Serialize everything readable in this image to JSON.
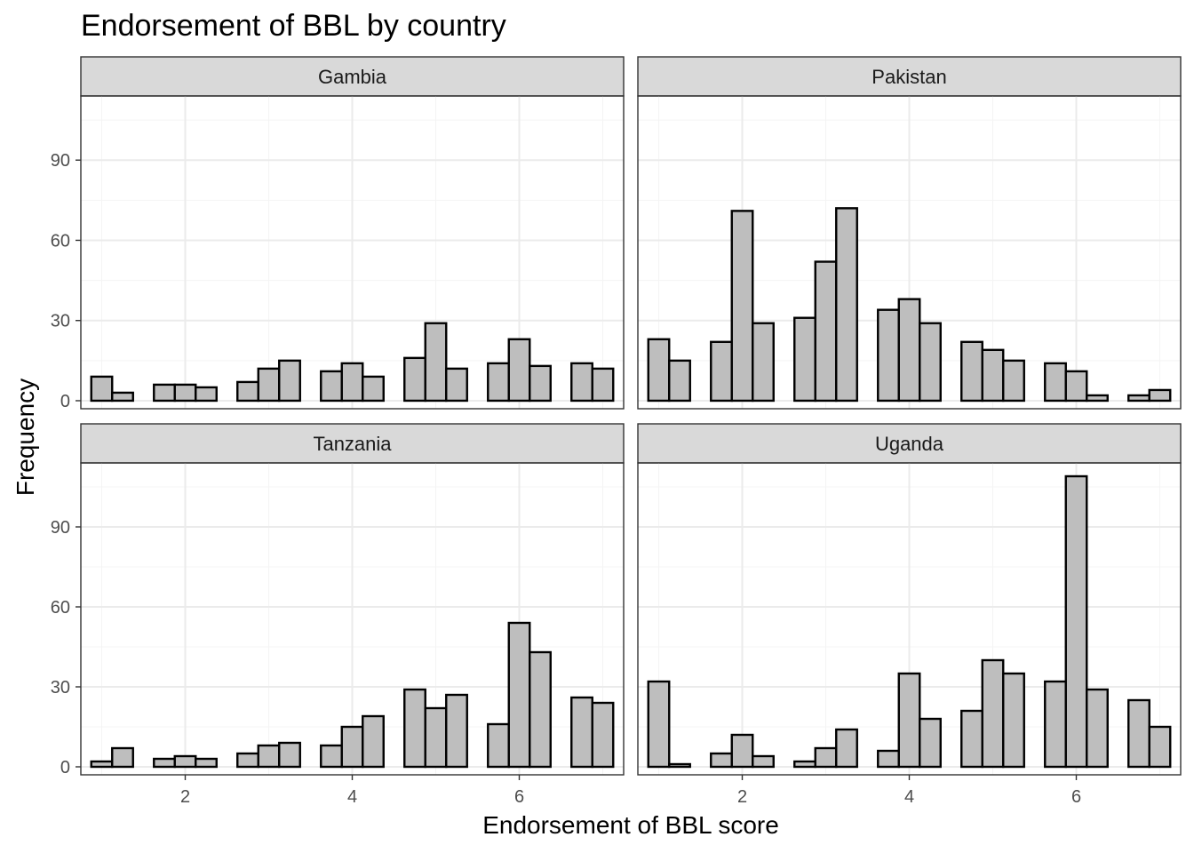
{
  "chart_data": {
    "type": "bar",
    "subtype": "faceted-histogram",
    "title": "Endorsement of BBL by country",
    "xlabel": "Endorsement of BBL score",
    "ylabel": "Frequency",
    "xlim": [
      0.75,
      7.25
    ],
    "ylim": [
      -3,
      114
    ],
    "x_ticks": [
      2,
      4,
      6
    ],
    "y_ticks": [
      0,
      30,
      60,
      90
    ],
    "grid": true,
    "colors": {
      "bar_fill": "#bebebe",
      "bar_outline": "#000000",
      "strip": "#d9d9d9",
      "grid": "#ebebeb"
    },
    "bin_centers": [
      1.0,
      1.25,
      1.5,
      1.75,
      2.0,
      2.25,
      2.5,
      2.75,
      3.0,
      3.25,
      3.5,
      3.75,
      4.0,
      4.25,
      4.5,
      4.75,
      5.0,
      5.25,
      5.5,
      5.75,
      6.0,
      6.25,
      6.5,
      6.75,
      7.0
    ],
    "bin_width": 0.25,
    "panels": [
      {
        "name": "Gambia",
        "values": [
          9,
          3,
          0,
          6,
          6,
          5,
          0,
          7,
          12,
          15,
          0,
          11,
          14,
          9,
          0,
          16,
          29,
          12,
          0,
          14,
          23,
          13,
          0,
          14,
          12
        ]
      },
      {
        "name": "Pakistan",
        "values": [
          23,
          15,
          0,
          22,
          71,
          29,
          0,
          31,
          52,
          72,
          0,
          34,
          38,
          29,
          0,
          22,
          19,
          15,
          0,
          14,
          11,
          2,
          0,
          2,
          4
        ]
      },
      {
        "name": "Tanzania",
        "values": [
          2,
          7,
          0,
          3,
          4,
          3,
          0,
          5,
          8,
          9,
          0,
          8,
          15,
          19,
          0,
          29,
          22,
          27,
          0,
          16,
          54,
          43,
          0,
          26,
          24
        ]
      },
      {
        "name": "Uganda",
        "values": [
          32,
          1,
          0,
          5,
          12,
          4,
          0,
          2,
          7,
          14,
          0,
          6,
          35,
          18,
          0,
          21,
          40,
          35,
          0,
          32,
          109,
          29,
          0,
          25,
          15
        ]
      }
    ]
  }
}
